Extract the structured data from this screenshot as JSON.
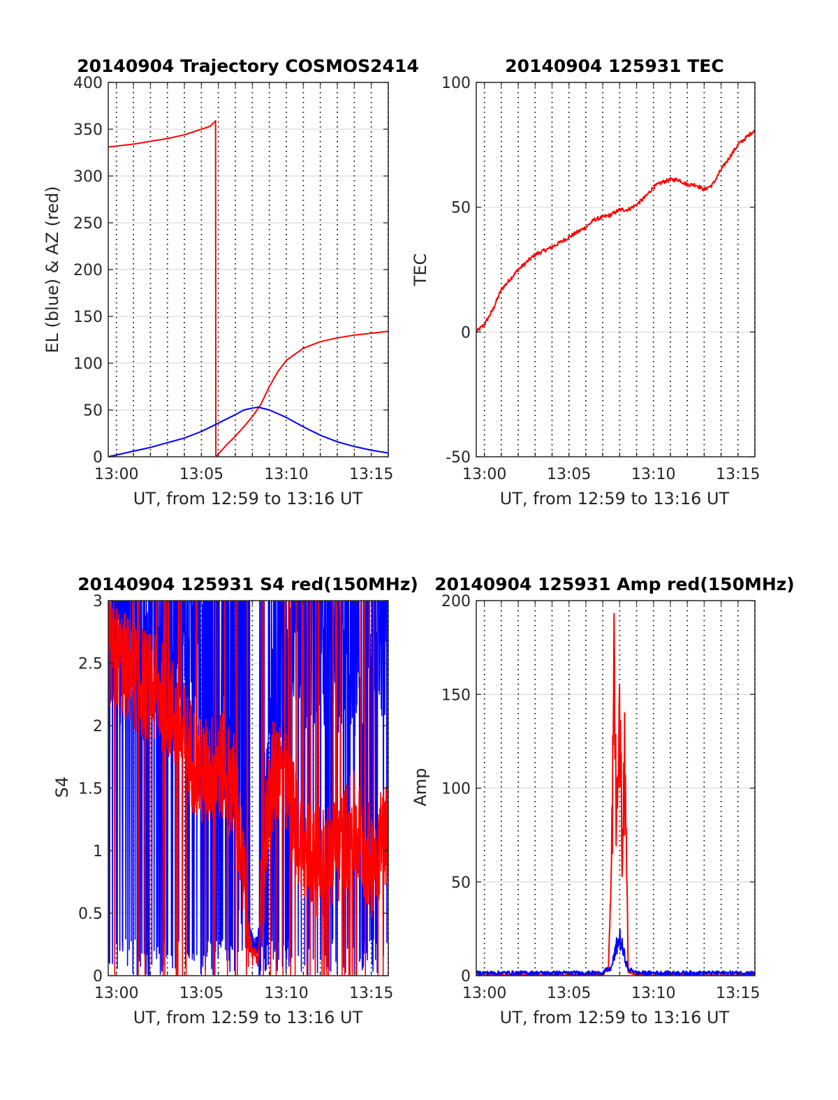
{
  "colors": {
    "red": "#ff0000",
    "blue": "#0000ff",
    "axis": "#262626",
    "grid": "#dcdcdc"
  },
  "panels": {
    "trajectory": {
      "title": "20140904 Trajectory COSMOS2414",
      "xlabel": "UT, from 12:59 to 13:16 UT",
      "ylabel": "EL (blue) & AZ (red)",
      "yticks": [
        "0",
        "50",
        "100",
        "150",
        "200",
        "250",
        "300",
        "350",
        "400"
      ]
    },
    "tec": {
      "title": "20140904 125931 TEC",
      "xlabel": "UT, from 12:59 to 13:16 UT",
      "ylabel": "TEC",
      "yticks": [
        "-50",
        "0",
        "50",
        "100"
      ]
    },
    "s4": {
      "title": "20140904 125931 S4 red(150MHz)",
      "xlabel": "UT, from 12:59 to 13:16 UT",
      "ylabel": "S4",
      "yticks": [
        "0",
        "0.5",
        "1",
        "1.5",
        "2",
        "2.5",
        "3"
      ]
    },
    "amp": {
      "title": "20140904 125931 Amp red(150MHz)",
      "xlabel": "UT, from 12:59 to 13:16 UT",
      "ylabel": "Amp",
      "yticks": [
        "0",
        "50",
        "100",
        "150",
        "200"
      ]
    }
  },
  "xticks": [
    "13:00",
    "13:05",
    "13:10",
    "13:15"
  ],
  "chart_data": [
    {
      "type": "line",
      "title": "20140904 Trajectory COSMOS2414",
      "xlabel": "UT, from 12:59 to 13:16 UT",
      "ylabel": "EL (blue) & AZ (red)",
      "xlim": [
        "12:59:31",
        "13:16:00"
      ],
      "ylim": [
        0,
        400
      ],
      "grid": "dotted vertical every minute, light horizontal",
      "series": [
        {
          "color": "red",
          "x": [
            "12:59:31",
            "13:01:00",
            "13:03:00",
            "13:04:00",
            "13:05:00",
            "13:05:30",
            "13:05:50",
            "13:05:51",
            "13:06:30",
            "13:07:00",
            "13:07:30",
            "13:08:00",
            "13:08:30",
            "13:09:00",
            "13:09:30",
            "13:10:00",
            "13:11:00",
            "13:12:00",
            "13:13:00",
            "13:14:00",
            "13:15:00",
            "13:16:00"
          ],
          "values": [
            331,
            334,
            340,
            344,
            350,
            353,
            359,
            0,
            13,
            22,
            32,
            43,
            56,
            75,
            91,
            103,
            116,
            123,
            127,
            130,
            132,
            134
          ]
        },
        {
          "color": "blue",
          "x": [
            "12:59:31",
            "13:01:00",
            "13:02:00",
            "13:03:00",
            "13:04:00",
            "13:05:00",
            "13:06:00",
            "13:07:00",
            "13:07:30",
            "13:08:00",
            "13:08:20",
            "13:09:00",
            "13:10:00",
            "13:11:00",
            "13:12:00",
            "13:13:00",
            "13:14:00",
            "13:15:00",
            "13:16:00"
          ],
          "values": [
            0,
            6,
            10,
            15,
            20,
            27,
            36,
            45,
            50,
            52,
            53,
            50,
            42,
            32,
            23,
            16,
            11,
            7,
            4
          ]
        }
      ]
    },
    {
      "type": "line",
      "title": "20140904 125931 TEC",
      "xlabel": "UT, from 12:59 to 13:16 UT",
      "ylabel": "TEC",
      "xlim": [
        "12:59:31",
        "13:16:00"
      ],
      "ylim": [
        -50,
        100
      ],
      "series": [
        {
          "color": "red",
          "x": [
            "12:59:31",
            "13:00:00",
            "13:00:30",
            "13:01:00",
            "13:01:30",
            "13:02:00",
            "13:02:30",
            "13:03:00",
            "13:04:00",
            "13:05:00",
            "13:05:30",
            "13:06:00",
            "13:06:30",
            "13:07:00",
            "13:07:30",
            "13:08:00",
            "13:08:30",
            "13:09:00",
            "13:09:30",
            "13:10:00",
            "13:10:30",
            "13:11:00",
            "13:11:30",
            "13:12:00",
            "13:12:30",
            "13:13:00",
            "13:13:30",
            "13:14:00",
            "13:14:30",
            "13:15:00",
            "13:15:30",
            "13:16:00"
          ],
          "values": [
            0,
            3,
            9,
            17,
            21,
            25,
            28,
            31,
            34,
            38,
            40,
            42,
            45,
            46,
            47,
            49,
            49,
            51,
            54,
            58,
            60,
            61,
            61,
            59,
            59,
            57,
            59,
            65,
            70,
            75,
            78,
            81
          ]
        }
      ]
    },
    {
      "type": "line",
      "title": "20140904 125931 S4 red(150MHz)",
      "xlabel": "UT, from 12:59 to 13:16 UT",
      "ylabel": "S4",
      "xlim": [
        "12:59:31",
        "13:16:00"
      ],
      "ylim": [
        0,
        3
      ],
      "series": [
        {
          "color": "blue",
          "x": [
            "12:59:31",
            "13:01:00",
            "13:03:00",
            "13:05:00",
            "13:06:30",
            "13:07:30",
            "13:08:00",
            "13:08:20",
            "13:08:40",
            "13:09:00",
            "13:10:00",
            "13:12:00",
            "13:14:00",
            "13:16:00"
          ],
          "values": [
            2.8,
            2.6,
            2.5,
            2.4,
            1.9,
            0.8,
            0.25,
            0.25,
            1.0,
            1.8,
            2.6,
            2.7,
            2.6,
            2.7
          ]
        },
        {
          "color": "red",
          "x": [
            "12:59:31",
            "13:01:00",
            "13:02:00",
            "13:03:00",
            "13:04:00",
            "13:05:00",
            "13:06:00",
            "13:07:00",
            "13:07:30",
            "13:08:00",
            "13:08:20",
            "13:08:40",
            "13:09:00",
            "13:09:30",
            "13:10:00",
            "13:11:00",
            "13:12:00",
            "13:13:00",
            "13:14:00",
            "13:15:00",
            "13:16:00"
          ],
          "values": [
            2.6,
            2.4,
            2.3,
            2.2,
            1.9,
            1.6,
            1.7,
            1.5,
            0.7,
            0.15,
            0.15,
            0.8,
            1.5,
            1.7,
            1.5,
            1.0,
            0.9,
            1.0,
            1.2,
            0.9,
            1.2
          ]
        }
      ]
    },
    {
      "type": "line",
      "title": "20140904 125931 Amp red(150MHz)",
      "xlabel": "UT, from 12:59 to 13:16 UT",
      "ylabel": "Amp",
      "xlim": [
        "12:59:31",
        "13:16:00"
      ],
      "ylim": [
        0,
        200
      ],
      "series": [
        {
          "color": "red",
          "x": [
            "12:59:31",
            "13:07:00",
            "13:07:20",
            "13:07:30",
            "13:07:40",
            "13:07:50",
            "13:08:00",
            "13:08:10",
            "13:08:20",
            "13:08:30",
            "13:09:00",
            "13:16:00"
          ],
          "values": [
            0,
            0,
            5,
            60,
            193,
            100,
            175,
            70,
            155,
            2,
            0,
            0
          ]
        },
        {
          "color": "blue",
          "x": [
            "12:59:31",
            "13:07:00",
            "13:07:30",
            "13:07:50",
            "13:08:00",
            "13:08:10",
            "13:08:30",
            "13:09:00",
            "13:16:00"
          ],
          "values": [
            1,
            1,
            5,
            20,
            25,
            18,
            4,
            1,
            1
          ]
        }
      ]
    }
  ]
}
